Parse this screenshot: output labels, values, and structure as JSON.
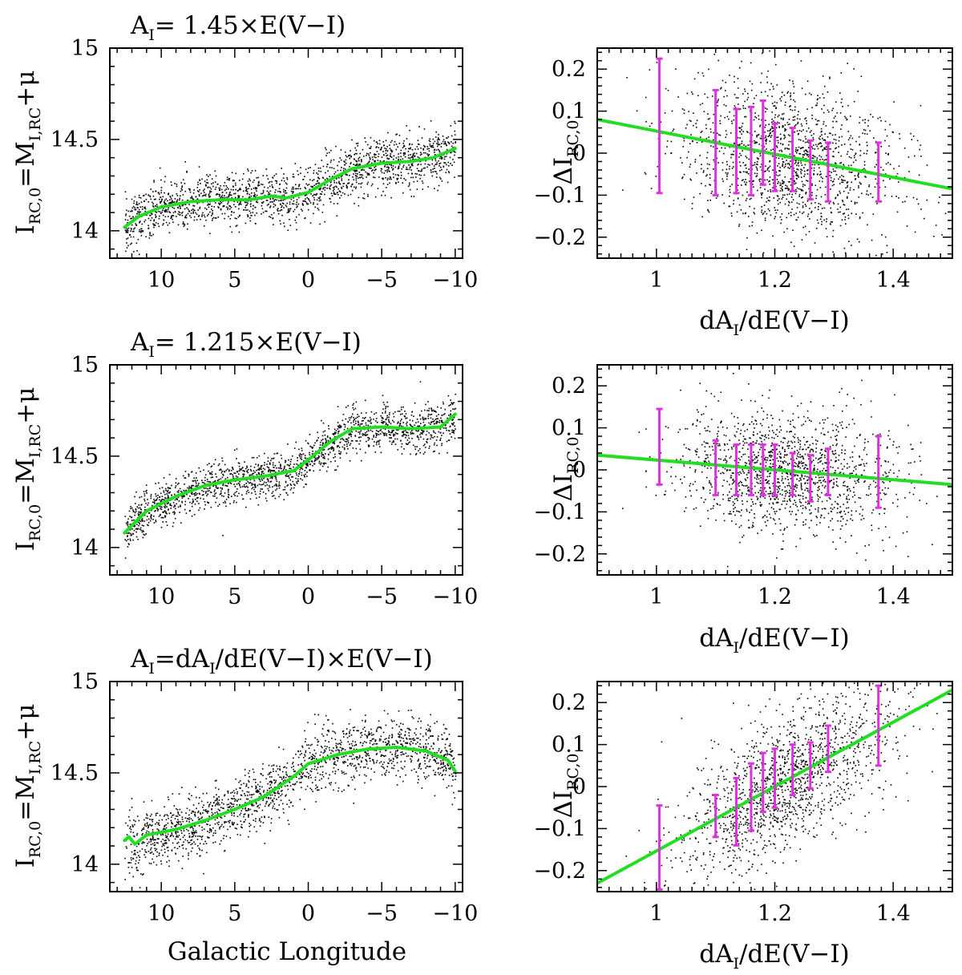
{
  "colors": {
    "fit_line": "#22dd22",
    "error_bar": "#dd33dd",
    "points": "#000000",
    "background": "#ffffff"
  },
  "shared": {
    "left_xlabel": "Galactic Longitude",
    "left_ylabel": "I_RC,0=M_I,RC+μ",
    "right_xlabel": "dA_I/dE(V−I)",
    "right_ylabel": "ΔI_RC,0"
  },
  "chart_data": [
    {
      "type": "scatter",
      "panel": "top-left",
      "title": "A_I= 1.45×E(V−I)",
      "xlabel": "",
      "ylabel": "I_RC,0=M_I,RC+μ",
      "xlim": [
        13.5,
        -10.5
      ],
      "ylim": [
        13.85,
        15.0
      ],
      "xticks": [
        10,
        5,
        0,
        -5,
        -10
      ],
      "yticks": [
        14,
        14.5,
        15
      ],
      "tick_labels_x": [
        "10",
        "5",
        "0",
        "−5",
        "−10"
      ],
      "tick_labels_y": [
        "14",
        "14.5",
        "15"
      ],
      "fit_curve": {
        "x": [
          12.5,
          11.5,
          10,
          8,
          6,
          4,
          2.5,
          1.5,
          0,
          -1.5,
          -3,
          -5,
          -7,
          -8.5,
          -10
        ],
        "y": [
          14.02,
          14.08,
          14.13,
          14.16,
          14.17,
          14.17,
          14.19,
          14.18,
          14.21,
          14.28,
          14.34,
          14.37,
          14.38,
          14.4,
          14.45
        ]
      },
      "scatter_sampled": {
        "x_range": [
          12.5,
          -10
        ],
        "spread": 0.12
      }
    },
    {
      "type": "scatter",
      "panel": "top-right",
      "title": "",
      "xlabel": "dA_I/dE(V−I)",
      "ylabel": "ΔI_RC,0",
      "xlim": [
        0.9,
        1.5
      ],
      "ylim": [
        -0.25,
        0.25
      ],
      "xticks": [
        1,
        1.2,
        1.4
      ],
      "yticks": [
        -0.2,
        -0.1,
        0,
        0.1,
        0.2
      ],
      "tick_labels_x": [
        "1",
        "1.2",
        "1.4"
      ],
      "tick_labels_y": [
        "−0.2",
        "−0.1",
        "0",
        "0.1",
        "0.2"
      ],
      "fit_line": {
        "x": [
          0.9,
          1.5
        ],
        "y": [
          0.08,
          -0.085
        ]
      },
      "error_bars": [
        {
          "x": 1.005,
          "y": 0.065,
          "err": 0.16
        },
        {
          "x": 1.1,
          "y": 0.025,
          "err": 0.125
        },
        {
          "x": 1.135,
          "y": 0.005,
          "err": 0.1
        },
        {
          "x": 1.16,
          "y": 0.005,
          "err": 0.105
        },
        {
          "x": 1.18,
          "y": 0.025,
          "err": 0.1
        },
        {
          "x": 1.2,
          "y": -0.01,
          "err": 0.08
        },
        {
          "x": 1.23,
          "y": -0.015,
          "err": 0.075
        },
        {
          "x": 1.26,
          "y": -0.04,
          "err": 0.07
        },
        {
          "x": 1.29,
          "y": -0.045,
          "err": 0.07
        },
        {
          "x": 1.375,
          "y": -0.045,
          "err": 0.07
        }
      ],
      "scatter_sampled": {
        "x_range": [
          0.95,
          1.48
        ],
        "spread": 0.09
      }
    },
    {
      "type": "scatter",
      "panel": "middle-left",
      "title": "A_I= 1.215×E(V−I)",
      "xlabel": "",
      "ylabel": "I_RC,0=M_I,RC+μ",
      "xlim": [
        13.5,
        -10.5
      ],
      "ylim": [
        13.85,
        15.0
      ],
      "xticks": [
        10,
        5,
        0,
        -5,
        -10
      ],
      "yticks": [
        14,
        14.5,
        15
      ],
      "tick_labels_x": [
        "10",
        "5",
        "0",
        "−5",
        "−10"
      ],
      "tick_labels_y": [
        "14",
        "14.5",
        "15"
      ],
      "fit_curve": {
        "x": [
          12.5,
          11,
          9,
          7,
          5,
          3,
          1,
          0,
          -1.5,
          -3,
          -5,
          -7,
          -9,
          -10
        ],
        "y": [
          14.08,
          14.2,
          14.28,
          14.34,
          14.37,
          14.39,
          14.42,
          14.48,
          14.58,
          14.65,
          14.66,
          14.65,
          14.66,
          14.73
        ]
      },
      "scatter_sampled": {
        "x_range": [
          12.5,
          -10
        ],
        "spread": 0.1
      }
    },
    {
      "type": "scatter",
      "panel": "middle-right",
      "title": "",
      "xlabel": "dA_I/dE(V−I)",
      "ylabel": "ΔI_RC,0",
      "xlim": [
        0.9,
        1.5
      ],
      "ylim": [
        -0.25,
        0.25
      ],
      "xticks": [
        1,
        1.2,
        1.4
      ],
      "yticks": [
        -0.2,
        -0.1,
        0,
        0.1,
        0.2
      ],
      "tick_labels_x": [
        "1",
        "1.2",
        "1.4"
      ],
      "tick_labels_y": [
        "−0.2",
        "−0.1",
        "0",
        "0.1",
        "0.2"
      ],
      "fit_line": {
        "x": [
          0.9,
          1.5
        ],
        "y": [
          0.035,
          -0.035
        ]
      },
      "error_bars": [
        {
          "x": 1.005,
          "y": 0.055,
          "err": 0.09
        },
        {
          "x": 1.1,
          "y": 0.005,
          "err": 0.065
        },
        {
          "x": 1.135,
          "y": 0.0,
          "err": 0.06
        },
        {
          "x": 1.16,
          "y": 0.0,
          "err": 0.06
        },
        {
          "x": 1.18,
          "y": 0.0,
          "err": 0.06
        },
        {
          "x": 1.2,
          "y": 0.0,
          "err": 0.06
        },
        {
          "x": 1.23,
          "y": -0.01,
          "err": 0.05
        },
        {
          "x": 1.26,
          "y": -0.02,
          "err": 0.055
        },
        {
          "x": 1.29,
          "y": -0.005,
          "err": 0.055
        },
        {
          "x": 1.375,
          "y": -0.005,
          "err": 0.085
        }
      ],
      "scatter_sampled": {
        "x_range": [
          0.95,
          1.48
        ],
        "spread": 0.07
      }
    },
    {
      "type": "scatter",
      "panel": "bottom-left",
      "title": "A_I=dA_I/dE(V−I)×E(V−I)",
      "xlabel": "Galactic Longitude",
      "ylabel": "I_RC,0=M_I,RC+μ",
      "xlim": [
        13.5,
        -10.5
      ],
      "ylim": [
        13.85,
        15.0
      ],
      "xticks": [
        10,
        5,
        0,
        -5,
        -10
      ],
      "yticks": [
        14,
        14.5,
        15
      ],
      "tick_labels_x": [
        "10",
        "5",
        "0",
        "−5",
        "−10"
      ],
      "tick_labels_y": [
        "14",
        "14.5",
        "15"
      ],
      "fit_curve": {
        "x": [
          12.5,
          12.2,
          11.8,
          11,
          9,
          7,
          5,
          3,
          1,
          0,
          -2,
          -4,
          -6,
          -8,
          -9.5,
          -10
        ],
        "y": [
          14.13,
          14.15,
          14.11,
          14.16,
          14.19,
          14.24,
          14.3,
          14.37,
          14.48,
          14.55,
          14.6,
          14.63,
          14.64,
          14.62,
          14.57,
          14.51
        ]
      },
      "scatter_sampled": {
        "x_range": [
          12.5,
          -10
        ],
        "spread": 0.14
      }
    },
    {
      "type": "scatter",
      "panel": "bottom-right",
      "title": "",
      "xlabel": "dA_I/dE(V−I)",
      "ylabel": "ΔI_RC,0",
      "xlim": [
        0.9,
        1.5
      ],
      "ylim": [
        -0.25,
        0.25
      ],
      "xticks": [
        1,
        1.2,
        1.4
      ],
      "yticks": [
        -0.2,
        -0.1,
        0,
        0.1,
        0.2
      ],
      "tick_labels_x": [
        "1",
        "1.2",
        "1.4"
      ],
      "tick_labels_y": [
        "−0.2",
        "−0.1",
        "0",
        "0.1",
        "0.2"
      ],
      "fit_line": {
        "x": [
          0.9,
          1.5
        ],
        "y": [
          -0.23,
          0.23
        ]
      },
      "error_bars": [
        {
          "x": 1.005,
          "y": -0.145,
          "err": 0.1
        },
        {
          "x": 1.1,
          "y": -0.07,
          "err": 0.05
        },
        {
          "x": 1.135,
          "y": -0.06,
          "err": 0.08
        },
        {
          "x": 1.16,
          "y": -0.025,
          "err": 0.08
        },
        {
          "x": 1.18,
          "y": 0.01,
          "err": 0.07
        },
        {
          "x": 1.2,
          "y": 0.02,
          "err": 0.07
        },
        {
          "x": 1.23,
          "y": 0.04,
          "err": 0.06
        },
        {
          "x": 1.26,
          "y": 0.05,
          "err": 0.055
        },
        {
          "x": 1.29,
          "y": 0.09,
          "err": 0.055
        },
        {
          "x": 1.375,
          "y": 0.145,
          "err": 0.095
        }
      ],
      "scatter_sampled": {
        "x_range": [
          0.95,
          1.48
        ],
        "spread": 0.08
      }
    }
  ]
}
